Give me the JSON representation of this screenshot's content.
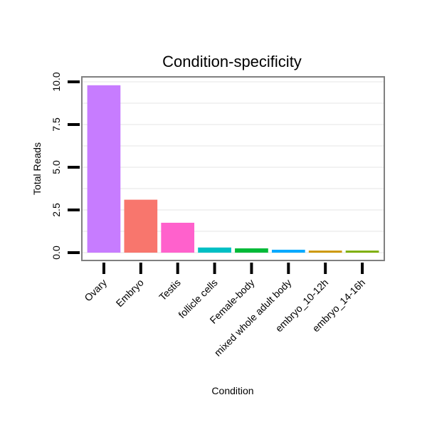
{
  "chart_data": {
    "type": "bar",
    "title": "Condition-specificity",
    "xlabel": "Condition",
    "ylabel": "Total Reads",
    "categories": [
      "Ovary",
      "Embryo",
      "Testis",
      "follicle cells",
      "Female-body",
      "mixed whole adult body",
      "embryo_10-12h",
      "embryo_14-16h"
    ],
    "values": [
      9.8,
      3.1,
      1.75,
      0.3,
      0.25,
      0.17,
      0.12,
      0.12
    ],
    "bar_colors": [
      "#C77CFF",
      "#F8766D",
      "#FF61CC",
      "#00BFC4",
      "#00BA38",
      "#00A9FF",
      "#CD9600",
      "#7CAE00"
    ],
    "ylim": [
      0,
      10.5
    ],
    "yticks": [
      0.0,
      2.5,
      5.0,
      7.5,
      10.0
    ],
    "ytick_labels": [
      "0.0",
      "2.5",
      "5.0",
      "7.5",
      "10.0"
    ],
    "grid": true,
    "legend": "none"
  }
}
